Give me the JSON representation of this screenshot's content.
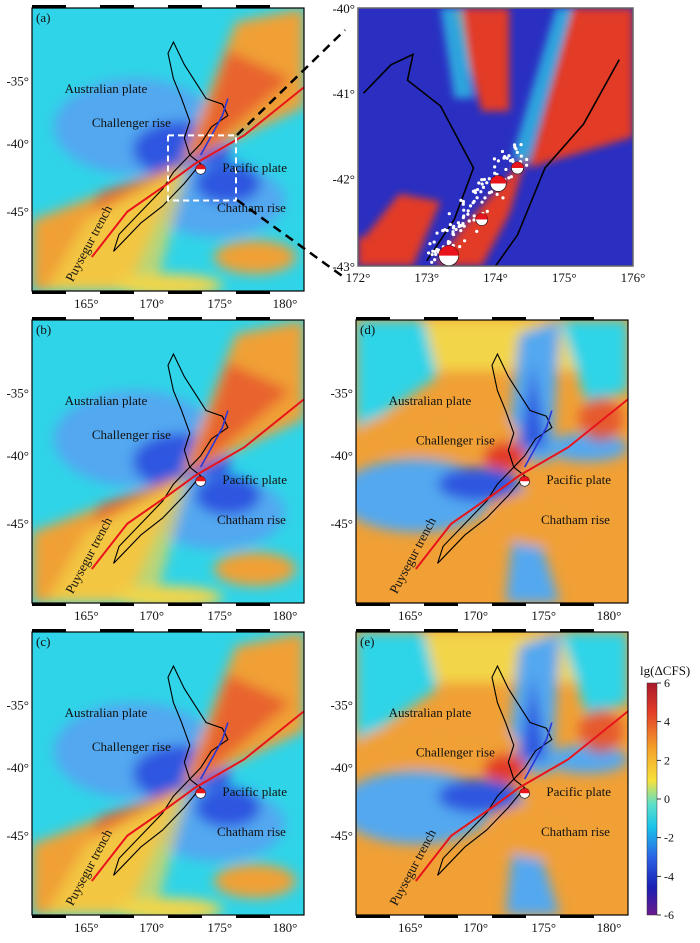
{
  "panels": [
    {
      "id": "a",
      "label": "(a)",
      "regions": {
        "australian": "Australian plate",
        "challenger": "Challenger rise",
        "pacific": "Pacific plate",
        "chatham": "Chatham rise",
        "trench": "Puysegur trench"
      },
      "lat_ticks": [
        "-35°",
        "-40°",
        "-45°"
      ],
      "lon_ticks": [
        "165°",
        "170°",
        "175°",
        "180°"
      ],
      "pattern": "a"
    },
    {
      "id": "b",
      "label": "(b)",
      "regions": {
        "australian": "Australian plate",
        "challenger": "Challenger rise",
        "pacific": "Pacific plate",
        "chatham": "Chatham rise",
        "trench": "Puysegur trench"
      },
      "lat_ticks": [
        "-35°",
        "-40°",
        "-45°"
      ],
      "lon_ticks": [
        "165°",
        "170°",
        "175°",
        "180°"
      ],
      "pattern": "a"
    },
    {
      "id": "c",
      "label": "(c)",
      "regions": {
        "australian": "Australian plate",
        "challenger": "Challenger rise",
        "pacific": "Pacific plate",
        "chatham": "Chatham rise",
        "trench": "Puysegur trench"
      },
      "lat_ticks": [
        "-35°",
        "-40°",
        "-45°"
      ],
      "lon_ticks": [
        "165°",
        "170°",
        "175°",
        "180°"
      ],
      "pattern": "a"
    },
    {
      "id": "d",
      "label": "(d)",
      "regions": {
        "australian": "Australian plate",
        "challenger": "Challenger rise",
        "pacific": "Pacific plate",
        "chatham": "Chatham rise",
        "trench": "Puysegur trench"
      },
      "lat_ticks": [
        "-35°",
        "-40°",
        "-45°"
      ],
      "lon_ticks": [
        "165°",
        "170°",
        "175°",
        "180°"
      ],
      "pattern": "d"
    },
    {
      "id": "e",
      "label": "(e)",
      "regions": {
        "australian": "Australian plate",
        "challenger": "Challenger rise",
        "pacific": "Pacific plate",
        "chatham": "Chatham rise",
        "trench": "Puysegur trench"
      },
      "lat_ticks": [
        "-35°",
        "-40°",
        "-45°"
      ],
      "lon_ticks": [
        "165°",
        "170°",
        "175°",
        "180°"
      ],
      "pattern": "d"
    }
  ],
  "inset": {
    "lat_ticks": [
      "-40°",
      "-41°",
      "-42°",
      "-43°"
    ],
    "lon_ticks": [
      "172°",
      "173°",
      "174°",
      "175°",
      "176°"
    ]
  },
  "colorbar": {
    "title": "lg(ΔCFS)",
    "ticks": [
      "6",
      "4",
      "2",
      "0",
      "-2",
      "-4",
      "-6"
    ],
    "colors": [
      "#b2182b",
      "#e8372a",
      "#f4a02a",
      "#f5e43a",
      "#6fe0c8",
      "#14c8e8",
      "#2b63e6",
      "#1a1fb5",
      "#6a1a8a"
    ]
  },
  "colors": {
    "red": "#e23b28",
    "orange": "#f0a035",
    "yellow": "#f3d548",
    "cyan": "#2fd4e8",
    "lightblue": "#52a8f0",
    "blue": "#2f57e0",
    "darkblue": "#1c22b8",
    "fault": "#e8141c",
    "fault_blue": "#2838d8"
  }
}
